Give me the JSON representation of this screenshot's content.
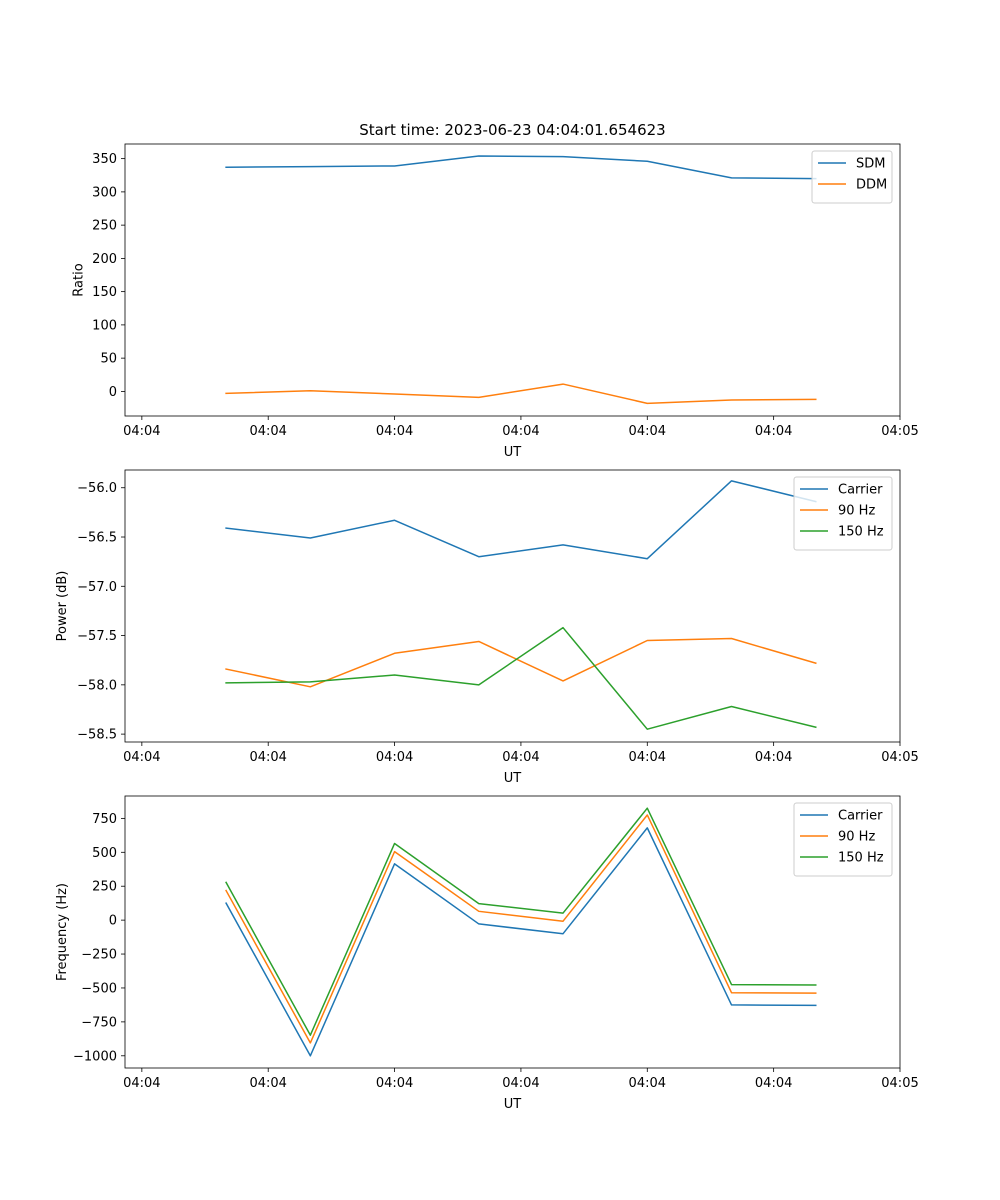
{
  "figure_title": "Start time: 2023-06-23 04:04:01.654623",
  "chart_data": [
    {
      "type": "line",
      "title": "Start time: 2023-06-23 04:04:01.654623",
      "xlabel": "UT",
      "ylabel": "Ratio",
      "x": [
        2.0,
        2.5,
        3.0,
        3.5,
        4.0,
        4.5,
        5.0,
        5.5
      ],
      "xticks": [
        1.5,
        2.25,
        3.0,
        3.75,
        4.5,
        5.25,
        6.0
      ],
      "xtick_labels": [
        "04:04",
        "04:04",
        "04:04",
        "04:04",
        "04:04",
        "04:04",
        "04:05"
      ],
      "xlim": [
        1.4,
        6.0
      ],
      "ylim": [
        -37,
        372
      ],
      "yticks": [
        0,
        50,
        100,
        150,
        200,
        250,
        300,
        350
      ],
      "ytick_labels": [
        "0",
        "50",
        "100",
        "150",
        "200",
        "250",
        "300",
        "350"
      ],
      "legend": "top-right",
      "grid": false,
      "series": [
        {
          "name": "SDM",
          "color": "#1f77b4",
          "values": [
            337,
            338,
            339,
            354,
            353,
            346,
            321,
            320
          ]
        },
        {
          "name": "DDM",
          "color": "#ff7f0e",
          "values": [
            -3,
            1,
            -4,
            -9,
            11,
            -18,
            -13,
            -12
          ]
        }
      ]
    },
    {
      "type": "line",
      "xlabel": "UT",
      "ylabel": "Power (dB)",
      "x": [
        2.0,
        2.5,
        3.0,
        3.5,
        4.0,
        4.5,
        5.0,
        5.5
      ],
      "xticks": [
        1.5,
        2.25,
        3.0,
        3.75,
        4.5,
        5.25,
        6.0
      ],
      "xtick_labels": [
        "04:04",
        "04:04",
        "04:04",
        "04:04",
        "04:04",
        "04:04",
        "04:05"
      ],
      "xlim": [
        1.4,
        6.0
      ],
      "ylim": [
        -58.58,
        -55.82
      ],
      "yticks": [
        -58.5,
        -58.0,
        -57.5,
        -57.0,
        -56.5,
        -56.0
      ],
      "ytick_labels": [
        "−58.5",
        "−58.0",
        "−57.5",
        "−57.0",
        "−56.5",
        "−56.0"
      ],
      "legend": "top-right",
      "grid": false,
      "series": [
        {
          "name": "Carrier",
          "color": "#1f77b4",
          "values": [
            -56.41,
            -56.51,
            -56.33,
            -56.7,
            -56.58,
            -56.72,
            -55.93,
            -56.14
          ]
        },
        {
          "name": "90 Hz",
          "color": "#ff7f0e",
          "values": [
            -57.84,
            -58.02,
            -57.68,
            -57.56,
            -57.96,
            -57.55,
            -57.53,
            -57.78
          ]
        },
        {
          "name": "150 Hz",
          "color": "#2ca02c",
          "values": [
            -57.98,
            -57.97,
            -57.9,
            -58.0,
            -57.42,
            -58.45,
            -58.22,
            -58.43
          ]
        }
      ]
    },
    {
      "type": "line",
      "xlabel": "UT",
      "ylabel": "Frequency (Hz)",
      "x": [
        2.0,
        2.5,
        3.0,
        3.5,
        4.0,
        4.5,
        5.0,
        5.5
      ],
      "xticks": [
        1.5,
        2.25,
        3.0,
        3.75,
        4.5,
        5.25,
        6.0
      ],
      "xtick_labels": [
        "04:04",
        "04:04",
        "04:04",
        "04:04",
        "04:04",
        "04:04",
        "04:05"
      ],
      "xlim": [
        1.4,
        6.0
      ],
      "ylim": [
        -1090,
        915
      ],
      "yticks": [
        -1000,
        -750,
        -500,
        -250,
        0,
        250,
        500,
        750
      ],
      "ytick_labels": [
        "−1000",
        "−750",
        "−500",
        "−250",
        "0",
        "250",
        "500",
        "750"
      ],
      "legend": "top-right",
      "grid": false,
      "series": [
        {
          "name": "Carrier",
          "color": "#1f77b4",
          "values": [
            125,
            -1000,
            415,
            -28,
            -100,
            680,
            -625,
            -628
          ]
        },
        {
          "name": "90 Hz",
          "color": "#ff7f0e",
          "values": [
            218,
            -905,
            505,
            65,
            -8,
            775,
            -535,
            -538
          ]
        },
        {
          "name": "150 Hz",
          "color": "#2ca02c",
          "values": [
            278,
            -848,
            565,
            122,
            52,
            825,
            -475,
            -478
          ]
        }
      ]
    }
  ]
}
